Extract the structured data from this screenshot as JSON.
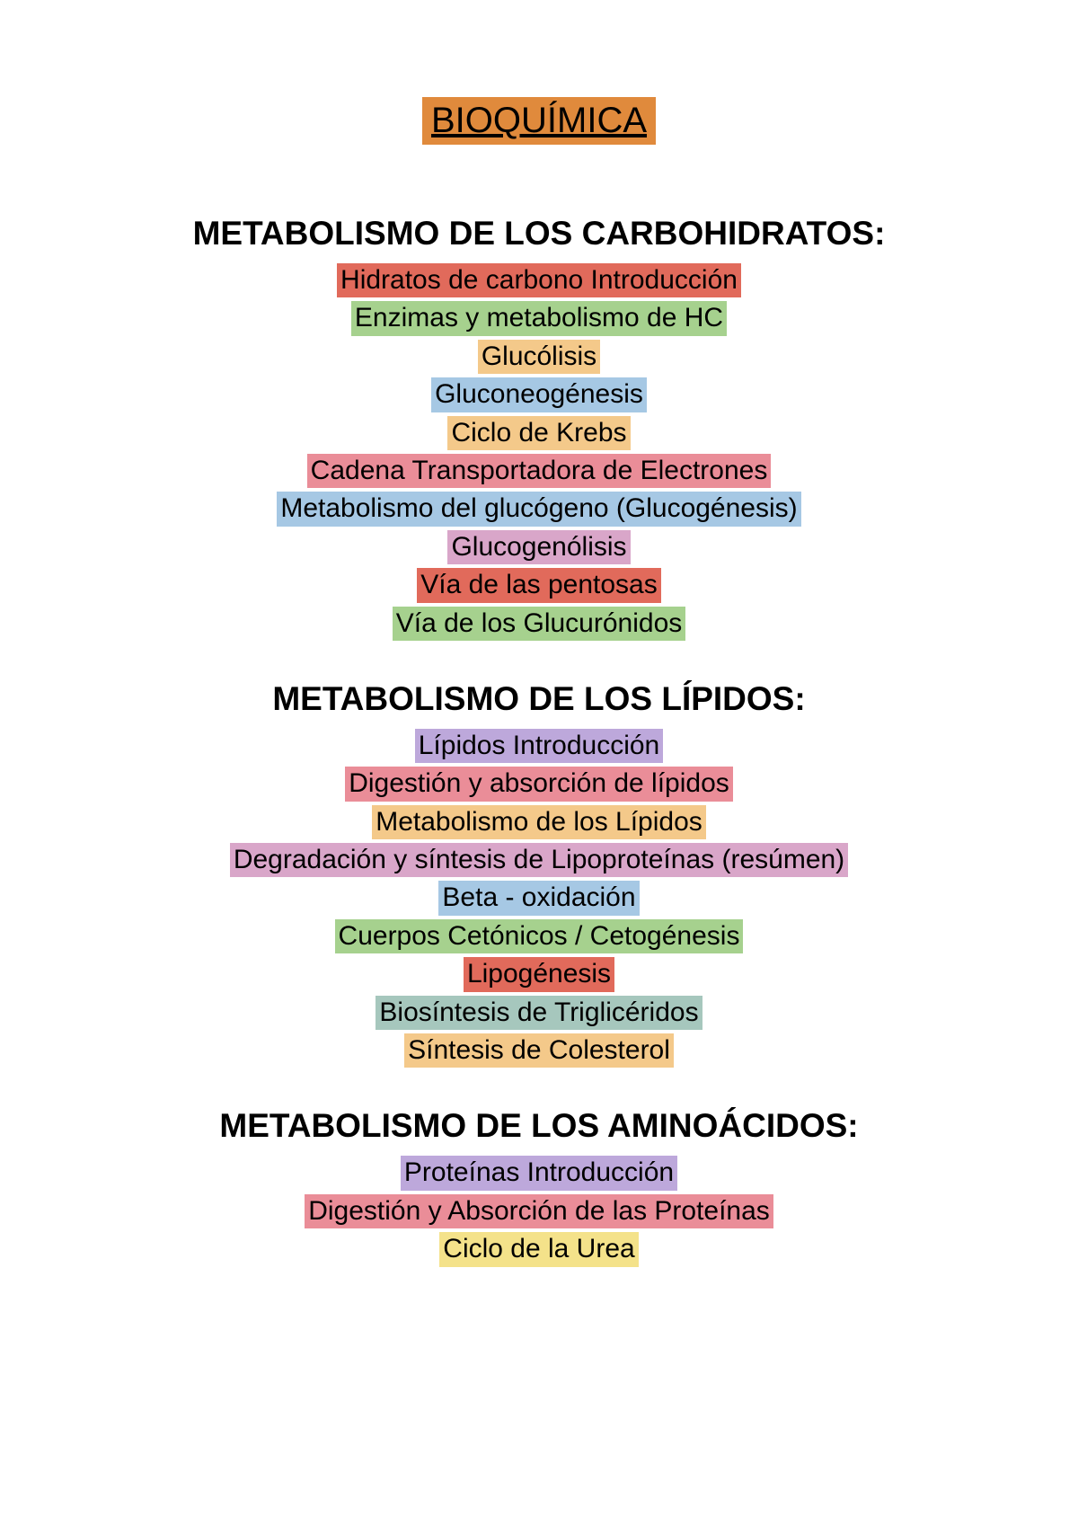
{
  "title": {
    "text": "BIOQUÍMICA",
    "bg": "#e08a3c",
    "color": "#000000",
    "fontsize": 40
  },
  "sections": [
    {
      "heading": "METABOLISMO DE LOS CARBOHIDRATOS:",
      "items": [
        {
          "text": "Hidratos de carbono Introducción",
          "bg": "#e16a5b"
        },
        {
          "text": "Enzimas y metabolismo de HC",
          "bg": "#a6d18e"
        },
        {
          "text": "Glucólisis",
          "bg": "#f4c98a"
        },
        {
          "text": "Gluconeogénesis",
          "bg": "#a6c8e4"
        },
        {
          "text": "Ciclo de Krebs",
          "bg": "#f4c98a"
        },
        {
          "text": "Cadena Transportadora de Electrones",
          "bg": "#ea8d98"
        },
        {
          "text": "Metabolismo del glucógeno (Glucogénesis)",
          "bg": "#a6c8e4"
        },
        {
          "text": "Glucogenólisis",
          "bg": "#d9a6c9"
        },
        {
          "text": "Vía de las pentosas",
          "bg": "#e16a5b"
        },
        {
          "text": "Vía de los Glucurónidos",
          "bg": "#a6d18e"
        }
      ]
    },
    {
      "heading": "METABOLISMO DE LOS LÍPIDOS:",
      "items": [
        {
          "text": "Lípidos Introducción",
          "bg": "#bda8db"
        },
        {
          "text": "Digestión y absorción de lípidos",
          "bg": "#ea8d98"
        },
        {
          "text": "Metabolismo de los Lípidos",
          "bg": "#f4c98a"
        },
        {
          "text": "Degradación y síntesis de Lipoproteínas (resúmen)",
          "bg": "#d9a6c9"
        },
        {
          "text": "Beta - oxidación",
          "bg": "#a6c8e4"
        },
        {
          "text": "Cuerpos Cetónicos / Cetogénesis",
          "bg": "#a6d18e"
        },
        {
          "text": "Lipogénesis",
          "bg": "#e16a5b"
        },
        {
          "text": "Biosíntesis de Triglicéridos",
          "bg": "#a6c7bd"
        },
        {
          "text": "Síntesis de Colesterol",
          "bg": "#f4c98a"
        }
      ]
    },
    {
      "heading": "METABOLISMO DE LOS AMINOÁCIDOS:",
      "items": [
        {
          "text": "Proteínas Introducción",
          "bg": "#bda8db"
        },
        {
          "text": "Digestión y Absorción de las Proteínas",
          "bg": "#ea8d98"
        },
        {
          "text": "Ciclo de la Urea",
          "bg": "#f4e28a"
        }
      ]
    }
  ],
  "style": {
    "page_bg": "#ffffff",
    "heading_fontsize": 37,
    "topic_fontsize": 30,
    "text_color": "#000000"
  }
}
